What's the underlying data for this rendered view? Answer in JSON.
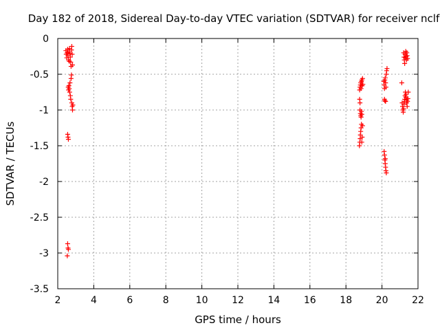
{
  "chart_data": {
    "type": "scatter",
    "title": "Day 182 of 2018, Sidereal Day-to-day VTEC variation (SDTVAR) for receiver nclf",
    "xlabel": "GPS time / hours",
    "ylabel": "SDTVAR / TECUs",
    "xlim": [
      2,
      22
    ],
    "ylim": [
      -3.5,
      0
    ],
    "xticks": [
      2,
      4,
      6,
      8,
      10,
      12,
      14,
      16,
      18,
      20,
      22
    ],
    "xtick_labels": [
      "2",
      "4",
      "6",
      "8",
      "10",
      "12",
      "14",
      "16",
      "18",
      "20",
      "22"
    ],
    "yticks": [
      0,
      -0.5,
      -1,
      -1.5,
      -2,
      -2.5,
      -3,
      -3.5
    ],
    "ytick_labels": [
      "0",
      "-0.5",
      "-1",
      "-1.5",
      "-2",
      "-2.5",
      "-3",
      "-3.5"
    ],
    "grid": true,
    "marker": "+",
    "color": "#ff0000",
    "points": [
      [
        2.45,
        -0.17
      ],
      [
        2.47,
        -0.22
      ],
      [
        2.5,
        -0.27
      ],
      [
        2.52,
        -0.2
      ],
      [
        2.55,
        -0.15
      ],
      [
        2.57,
        -0.24
      ],
      [
        2.6,
        -0.3
      ],
      [
        2.62,
        -0.19
      ],
      [
        2.65,
        -0.14
      ],
      [
        2.67,
        -0.21
      ],
      [
        2.7,
        -0.26
      ],
      [
        2.72,
        -0.33
      ],
      [
        2.74,
        -0.39
      ],
      [
        2.76,
        -0.16
      ],
      [
        2.78,
        -0.11
      ],
      [
        2.8,
        -0.22
      ],
      [
        2.82,
        -0.37
      ],
      [
        2.64,
        -0.32
      ],
      [
        2.58,
        -0.68
      ],
      [
        2.6,
        -0.72
      ],
      [
        2.62,
        -0.66
      ],
      [
        2.64,
        -0.7
      ],
      [
        2.66,
        -0.75
      ],
      [
        2.68,
        -0.62
      ],
      [
        2.7,
        -0.8
      ],
      [
        2.72,
        -0.85
      ],
      [
        2.74,
        -0.56
      ],
      [
        2.76,
        -0.51
      ],
      [
        2.78,
        -0.9
      ],
      [
        2.8,
        -0.95
      ],
      [
        2.82,
        -1.0
      ],
      [
        2.84,
        -0.93
      ],
      [
        2.55,
        -1.34
      ],
      [
        2.57,
        -1.38
      ],
      [
        2.59,
        -1.41
      ],
      [
        2.55,
        -2.87
      ],
      [
        2.57,
        -2.93
      ],
      [
        2.59,
        -2.95
      ],
      [
        2.53,
        -3.04
      ],
      [
        18.75,
        -1.5
      ],
      [
        18.77,
        -1.45
      ],
      [
        18.79,
        -1.4
      ],
      [
        18.8,
        -1.35
      ],
      [
        18.82,
        -1.3
      ],
      [
        18.84,
        -1.25
      ],
      [
        18.86,
        -1.2
      ],
      [
        18.88,
        -1.45
      ],
      [
        18.9,
        -1.38
      ],
      [
        18.92,
        -1.22
      ],
      [
        18.78,
        -1.0
      ],
      [
        18.8,
        -1.05
      ],
      [
        18.82,
        -1.08
      ],
      [
        18.84,
        -1.1
      ],
      [
        18.86,
        -1.02
      ],
      [
        18.88,
        -1.06
      ],
      [
        18.76,
        -0.72
      ],
      [
        18.78,
        -0.68
      ],
      [
        18.8,
        -0.65
      ],
      [
        18.82,
        -0.62
      ],
      [
        18.84,
        -0.7
      ],
      [
        18.86,
        -0.6
      ],
      [
        18.88,
        -0.58
      ],
      [
        18.9,
        -0.66
      ],
      [
        18.92,
        -0.56
      ],
      [
        18.94,
        -0.64
      ],
      [
        18.76,
        -0.85
      ],
      [
        18.78,
        -0.9
      ],
      [
        20.1,
        -0.6
      ],
      [
        20.12,
        -0.65
      ],
      [
        20.14,
        -0.7
      ],
      [
        20.16,
        -0.58
      ],
      [
        20.18,
        -0.55
      ],
      [
        20.2,
        -0.62
      ],
      [
        20.22,
        -0.68
      ],
      [
        20.24,
        -0.5
      ],
      [
        20.26,
        -0.45
      ],
      [
        20.28,
        -0.42
      ],
      [
        20.14,
        -0.85
      ],
      [
        20.16,
        -0.87
      ],
      [
        20.2,
        -0.88
      ],
      [
        20.12,
        -1.58
      ],
      [
        20.14,
        -1.63
      ],
      [
        20.16,
        -1.7
      ],
      [
        20.18,
        -1.75
      ],
      [
        20.2,
        -1.8
      ],
      [
        20.22,
        -1.85
      ],
      [
        20.24,
        -1.88
      ],
      [
        20.18,
        -1.68
      ],
      [
        21.1,
        -0.62
      ],
      [
        21.12,
        -0.9
      ],
      [
        21.14,
        -0.95
      ],
      [
        21.16,
        -1.0
      ],
      [
        21.18,
        -1.03
      ],
      [
        21.2,
        -0.98
      ],
      [
        21.22,
        -0.92
      ],
      [
        21.24,
        -0.88
      ],
      [
        21.26,
        -0.85
      ],
      [
        21.28,
        -0.8
      ],
      [
        21.3,
        -0.75
      ],
      [
        21.32,
        -0.82
      ],
      [
        21.34,
        -0.78
      ],
      [
        21.36,
        -0.9
      ],
      [
        21.38,
        -0.86
      ],
      [
        21.4,
        -0.95
      ],
      [
        21.42,
        -0.88
      ],
      [
        21.44,
        -0.84
      ],
      [
        21.46,
        -0.75
      ],
      [
        21.2,
        -0.2
      ],
      [
        21.22,
        -0.26
      ],
      [
        21.24,
        -0.3
      ],
      [
        21.26,
        -0.35
      ],
      [
        21.28,
        -0.22
      ],
      [
        21.3,
        -0.27
      ],
      [
        21.32,
        -0.18
      ],
      [
        21.34,
        -0.25
      ],
      [
        21.36,
        -0.3
      ],
      [
        21.38,
        -0.2
      ],
      [
        21.4,
        -0.24
      ],
      [
        21.42,
        -0.28
      ]
    ]
  }
}
